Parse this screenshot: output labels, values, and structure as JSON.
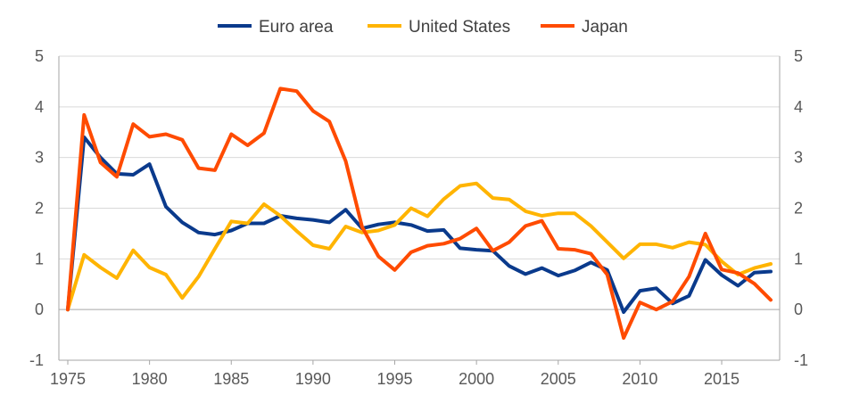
{
  "chart_data": {
    "type": "line",
    "title": "",
    "xlabel": "",
    "ylabel": "",
    "ylim": [
      -1,
      5
    ],
    "yticks": [
      -1,
      0,
      1,
      2,
      3,
      4,
      5
    ],
    "xlim": [
      1975,
      2018
    ],
    "xticks": [
      1975,
      1980,
      1985,
      1990,
      1995,
      2000,
      2005,
      2010,
      2015
    ],
    "grid": "horizontal",
    "legend_position": "top-center",
    "x": [
      1975,
      1976,
      1977,
      1978,
      1979,
      1980,
      1981,
      1982,
      1983,
      1984,
      1985,
      1986,
      1987,
      1988,
      1989,
      1990,
      1991,
      1992,
      1993,
      1994,
      1995,
      1996,
      1997,
      1998,
      1999,
      2000,
      2001,
      2002,
      2003,
      2004,
      2005,
      2006,
      2007,
      2008,
      2009,
      2010,
      2011,
      2012,
      2013,
      2014,
      2015,
      2016,
      2017,
      2018
    ],
    "series": [
      {
        "name": "Euro area",
        "color": "#0a3a8c",
        "values": [
          0,
          3.4,
          3.0,
          2.68,
          2.66,
          2.87,
          2.03,
          1.72,
          1.52,
          1.48,
          1.56,
          1.7,
          1.7,
          1.85,
          1.8,
          1.77,
          1.72,
          1.97,
          1.6,
          1.68,
          1.72,
          1.67,
          1.55,
          1.57,
          1.21,
          1.18,
          1.16,
          0.86,
          0.7,
          0.82,
          0.67,
          0.77,
          0.93,
          0.78,
          -0.05,
          0.37,
          0.42,
          0.12,
          0.27,
          0.98,
          0.68,
          0.47,
          0.73,
          0.75
        ]
      },
      {
        "name": "United States",
        "color": "#ffb400",
        "values": [
          0,
          1.08,
          0.83,
          0.62,
          1.17,
          0.83,
          0.69,
          0.23,
          0.65,
          1.2,
          1.74,
          1.7,
          2.08,
          1.85,
          1.55,
          1.27,
          1.2,
          1.64,
          1.52,
          1.56,
          1.67,
          2.0,
          1.84,
          2.18,
          2.44,
          2.49,
          2.2,
          2.17,
          1.94,
          1.85,
          1.9,
          1.9,
          1.65,
          1.33,
          1.01,
          1.29,
          1.29,
          1.22,
          1.33,
          1.28,
          0.95,
          0.69,
          0.82,
          0.9
        ]
      },
      {
        "name": "Japan",
        "color": "#ff4b00",
        "values": [
          0,
          3.84,
          2.9,
          2.62,
          3.66,
          3.41,
          3.46,
          3.35,
          2.79,
          2.75,
          3.46,
          3.24,
          3.48,
          4.36,
          4.31,
          3.92,
          3.71,
          2.93,
          1.63,
          1.05,
          0.78,
          1.13,
          1.26,
          1.3,
          1.4,
          1.6,
          1.16,
          1.33,
          1.65,
          1.75,
          1.2,
          1.18,
          1.1,
          0.69,
          -0.56,
          0.14,
          0.0,
          0.16,
          0.65,
          1.5,
          0.79,
          0.72,
          0.51,
          0.19
        ]
      }
    ]
  }
}
